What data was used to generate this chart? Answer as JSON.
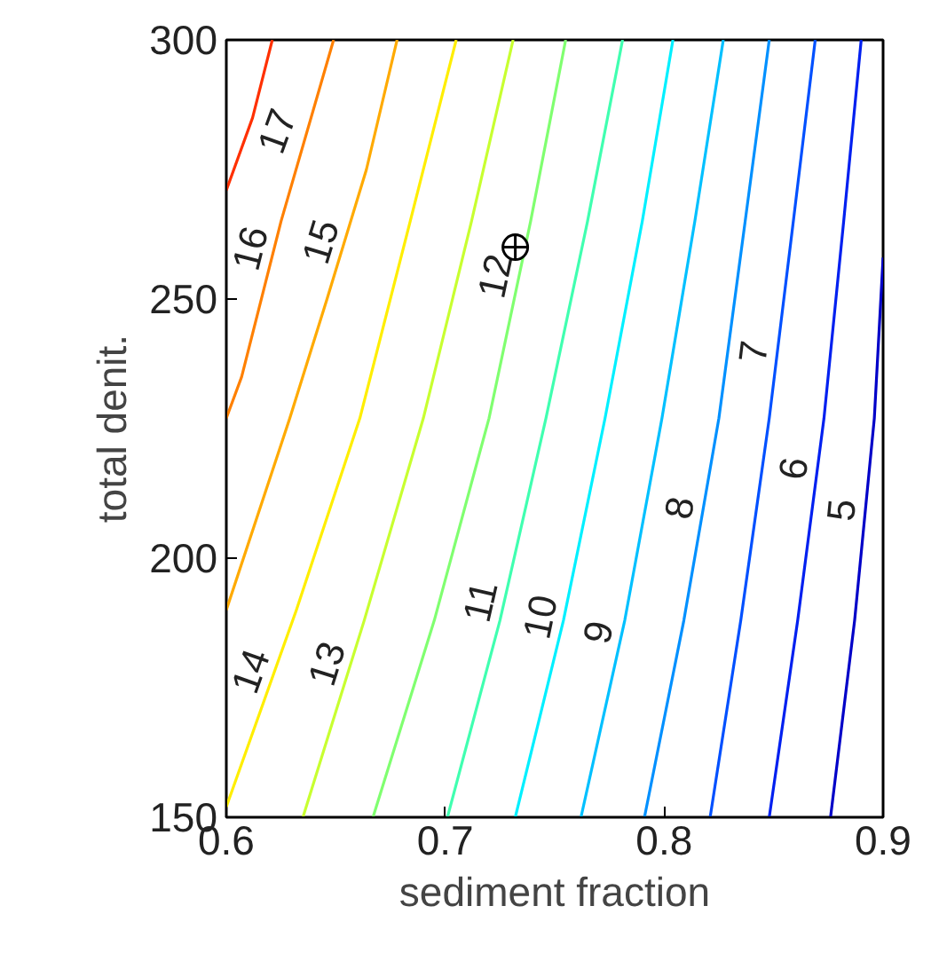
{
  "chart_data": {
    "type": "line",
    "xlabel": "sediment fraction",
    "ylabel": "total denit.",
    "xlim": [
      0.6,
      0.9
    ],
    "ylim": [
      150,
      300
    ],
    "xticks": [
      0.6,
      0.7,
      0.8,
      0.9
    ],
    "yticks": [
      150,
      200,
      250,
      300
    ],
    "grid": false,
    "marker": "none",
    "line_style": "solid",
    "series": [
      {
        "name": "17",
        "color": "#ff3000",
        "x": [
          0.621,
          0.612,
          0.6
        ],
        "values": [
          300,
          285,
          271
        ]
      },
      {
        "name": "16",
        "color": "#ff8000",
        "x": [
          0.649,
          0.625,
          0.607,
          0.6
        ],
        "values": [
          300,
          265,
          235,
          227
        ]
      },
      {
        "name": "15",
        "color": "#ffaa00",
        "x": [
          0.678,
          0.664,
          0.646,
          0.629,
          0.6
        ],
        "values": [
          300,
          275,
          250,
          227,
          190
        ]
      },
      {
        "name": "14",
        "color": "#ffee00",
        "x": [
          0.705,
          0.684,
          0.661,
          0.632,
          0.6
        ],
        "values": [
          300,
          265,
          227,
          190,
          152
        ]
      },
      {
        "name": "13",
        "color": "#c8ff30",
        "x": [
          0.731,
          0.712,
          0.69,
          0.663,
          0.635
        ],
        "values": [
          300,
          265,
          227,
          188,
          150
        ]
      },
      {
        "name": "12",
        "color": "#80ff70",
        "x": [
          0.755,
          0.739,
          0.72,
          0.695,
          0.667
        ],
        "values": [
          300,
          265,
          227,
          188,
          150
        ]
      },
      {
        "name": "11",
        "color": "#40ffb0",
        "x": [
          0.781,
          0.765,
          0.746,
          0.725,
          0.701
        ],
        "values": [
          300,
          265,
          227,
          188,
          150
        ]
      },
      {
        "name": "10",
        "color": "#00f0ff",
        "x": [
          0.804,
          0.79,
          0.773,
          0.754,
          0.732
        ],
        "values": [
          300,
          265,
          227,
          188,
          150
        ]
      },
      {
        "name": "9",
        "color": "#00c0ff",
        "x": [
          0.827,
          0.814,
          0.799,
          0.782,
          0.762
        ],
        "values": [
          300,
          265,
          227,
          188,
          150
        ]
      },
      {
        "name": "8",
        "color": "#0090ff",
        "x": [
          0.848,
          0.837,
          0.825,
          0.809,
          0.791
        ],
        "values": [
          300,
          265,
          227,
          188,
          150
        ]
      },
      {
        "name": "7",
        "color": "#0050ff",
        "x": [
          0.869,
          0.859,
          0.848,
          0.835,
          0.821
        ],
        "values": [
          300,
          265,
          227,
          188,
          150
        ]
      },
      {
        "name": "6",
        "color": "#0020f0",
        "x": [
          0.89,
          0.882,
          0.873,
          0.861,
          0.848
        ],
        "values": [
          300,
          265,
          227,
          188,
          150
        ]
      },
      {
        "name": "5",
        "color": "#0000c8",
        "x": [
          0.9,
          0.896,
          0.887,
          0.876
        ],
        "values": [
          258,
          227,
          188,
          150
        ]
      },
      {
        "type": "scatter",
        "color": "#000000",
        "marker": "circle",
        "x": [
          0.732
        ],
        "values": [
          260
        ]
      }
    ]
  }
}
